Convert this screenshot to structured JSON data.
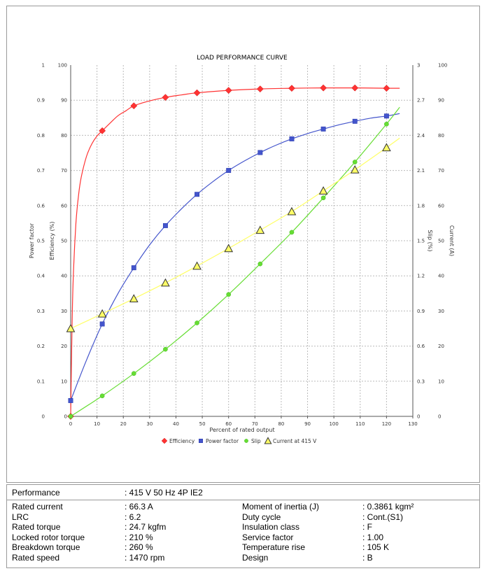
{
  "chart_data": {
    "type": "line",
    "title": "LOAD PERFORMANCE CURVE",
    "xlabel": "Percent of rated output",
    "xlim": [
      0,
      130
    ],
    "xticks": [
      0,
      10,
      20,
      30,
      40,
      50,
      60,
      70,
      80,
      90,
      100,
      110,
      120,
      130
    ],
    "grid": true,
    "legend_position": "bottom",
    "axes": {
      "power_factor": {
        "label": "Power factor",
        "side": "left",
        "range": [
          0,
          1
        ],
        "ticks": [
          "0",
          "0.1",
          "0.2",
          "0.3",
          "0.4",
          "0.5",
          "0.6",
          "0.7",
          "0.8",
          "0.9",
          "1"
        ]
      },
      "efficiency": {
        "label": "Efficiency (%)",
        "side": "left",
        "range": [
          0,
          100
        ],
        "ticks": [
          "0",
          "10",
          "20",
          "30",
          "40",
          "50",
          "60",
          "70",
          "80",
          "90",
          "100"
        ]
      },
      "slip": {
        "label": "Slip (%)",
        "side": "right",
        "range": [
          0,
          3
        ],
        "ticks": [
          "0",
          "0.3",
          "0.6",
          "0.9",
          "1.2",
          "1.5",
          "1.8",
          "2.1",
          "2.4",
          "2.7",
          "3"
        ]
      },
      "current": {
        "label": "Current (A)",
        "side": "right",
        "range": [
          0,
          100
        ],
        "ticks": [
          "0",
          "10",
          "20",
          "30",
          "40",
          "50",
          "60",
          "70",
          "80",
          "90",
          "100"
        ]
      }
    },
    "series": [
      {
        "name": "Efficiency",
        "axis": "efficiency",
        "color": "#ff3333",
        "marker": "diamond",
        "x": [
          0,
          12,
          24,
          36,
          48,
          60,
          72,
          84,
          96,
          108,
          120
        ],
        "y": [
          0,
          81.3,
          88.4,
          90.8,
          92.1,
          92.8,
          93.2,
          93.4,
          93.5,
          93.5,
          93.4
        ],
        "curve": [
          [
            0,
            0
          ],
          [
            0.5,
            25
          ],
          [
            1,
            40
          ],
          [
            2,
            55
          ],
          [
            3,
            63
          ],
          [
            4,
            68
          ],
          [
            6,
            74
          ],
          [
            8,
            77.5
          ],
          [
            10,
            79.8
          ],
          [
            12,
            81.3
          ],
          [
            15,
            83.5
          ],
          [
            18,
            85.6
          ],
          [
            21,
            87
          ],
          [
            24,
            88.4
          ],
          [
            30,
            89.8
          ],
          [
            36,
            90.8
          ],
          [
            42,
            91.5
          ],
          [
            48,
            92.1
          ],
          [
            60,
            92.8
          ],
          [
            72,
            93.2
          ],
          [
            84,
            93.4
          ],
          [
            96,
            93.5
          ],
          [
            108,
            93.5
          ],
          [
            120,
            93.4
          ],
          [
            125,
            93.4
          ]
        ]
      },
      {
        "name": "Power factor",
        "axis": "power_factor",
        "color": "#4455cc",
        "marker": "square",
        "x": [
          0,
          12,
          24,
          36,
          48,
          60,
          72,
          84,
          96,
          108,
          120
        ],
        "y": [
          0.045,
          0.263,
          0.423,
          0.543,
          0.632,
          0.7,
          0.751,
          0.79,
          0.818,
          0.84,
          0.855
        ],
        "curve": [
          [
            0,
            0.045
          ],
          [
            6,
            0.16
          ],
          [
            12,
            0.263
          ],
          [
            18,
            0.35
          ],
          [
            24,
            0.423
          ],
          [
            30,
            0.488
          ],
          [
            36,
            0.543
          ],
          [
            42,
            0.59
          ],
          [
            48,
            0.632
          ],
          [
            54,
            0.668
          ],
          [
            60,
            0.7
          ],
          [
            66,
            0.727
          ],
          [
            72,
            0.751
          ],
          [
            78,
            0.772
          ],
          [
            84,
            0.79
          ],
          [
            90,
            0.805
          ],
          [
            96,
            0.818
          ],
          [
            102,
            0.83
          ],
          [
            108,
            0.84
          ],
          [
            114,
            0.849
          ],
          [
            120,
            0.855
          ],
          [
            125,
            0.862
          ]
        ]
      },
      {
        "name": "Slip",
        "axis": "slip",
        "color": "#66dd33",
        "marker": "circle",
        "x": [
          0,
          12,
          24,
          36,
          48,
          60,
          72,
          84,
          96,
          108,
          120
        ],
        "y": [
          0,
          0.175,
          0.366,
          0.573,
          0.798,
          1.041,
          1.302,
          1.572,
          1.866,
          2.172,
          2.496
        ],
        "curve": [
          [
            0,
            0
          ],
          [
            12,
            0.175
          ],
          [
            24,
            0.366
          ],
          [
            36,
            0.573
          ],
          [
            48,
            0.798
          ],
          [
            60,
            1.041
          ],
          [
            72,
            1.302
          ],
          [
            84,
            1.572
          ],
          [
            96,
            1.866
          ],
          [
            108,
            2.172
          ],
          [
            120,
            2.496
          ],
          [
            125,
            2.64
          ]
        ]
      },
      {
        "name": "Current at 415 V",
        "axis": "current",
        "color": "#ffff66",
        "marker": "triangle",
        "x": [
          0,
          12,
          24,
          36,
          48,
          60,
          72,
          84,
          96,
          108,
          120
        ],
        "y": [
          25,
          29.2,
          33.5,
          38,
          42.8,
          47.8,
          53,
          58.3,
          64.2,
          70.2,
          76.5
        ],
        "curve": [
          [
            0,
            25
          ],
          [
            12,
            29.2
          ],
          [
            24,
            33.5
          ],
          [
            36,
            38
          ],
          [
            48,
            42.8
          ],
          [
            60,
            47.8
          ],
          [
            72,
            53
          ],
          [
            84,
            58.3
          ],
          [
            96,
            64.2
          ],
          [
            108,
            70.2
          ],
          [
            120,
            76.5
          ],
          [
            125,
            79.2
          ]
        ]
      }
    ]
  },
  "performance": {
    "label": "Performance",
    "value": ": 415 V 50 Hz 4P IE2"
  },
  "specs_left": [
    {
      "label": "Rated current",
      "value": ": 66.3 A"
    },
    {
      "label": "LRC",
      "value": ": 6.2"
    },
    {
      "label": "Rated torque",
      "value": ": 24.7 kgfm"
    },
    {
      "label": "Locked rotor torque",
      "value": ": 210 %"
    },
    {
      "label": "Breakdown torque",
      "value": ": 260 %"
    },
    {
      "label": "Rated speed",
      "value": ": 1470 rpm"
    }
  ],
  "specs_right": [
    {
      "label": "Moment of inertia (J)",
      "value": ": 0.3861 kgm²"
    },
    {
      "label": "Duty cycle",
      "value": ": Cont.(S1)"
    },
    {
      "label": "Insulation class",
      "value": ": F"
    },
    {
      "label": "Service factor",
      "value": ": 1.00"
    },
    {
      "label": "Temperature rise",
      "value": ": 105 K"
    },
    {
      "label": "Design",
      "value": ": B"
    }
  ]
}
